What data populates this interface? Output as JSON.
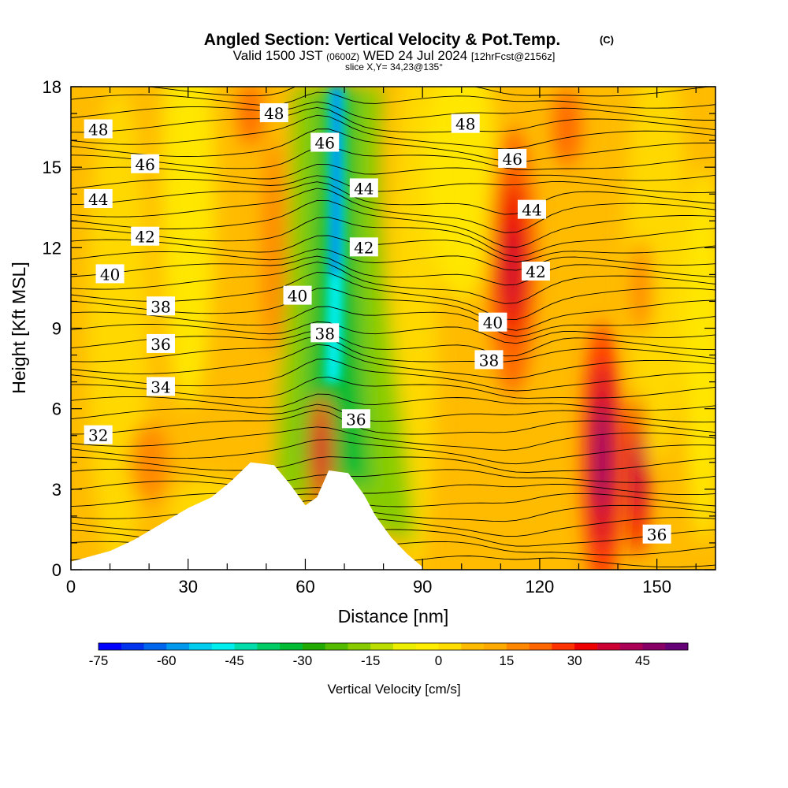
{
  "header": {
    "title": "Angled Section: Vertical Velocity & Pot.Temp.",
    "copyright": "(C)",
    "valid_prefix": "Valid 1500 JST",
    "valid_z": "(0600Z)",
    "valid_date": "WED 24 Jul 2024",
    "fcst": "[12hrFcst@2156z]",
    "slice": "slice X,Y= 34,23@135°"
  },
  "colorbar": {
    "label": "Vertical Velocity [cm/s]",
    "tick_labels": [
      "-75",
      "-60",
      "-45",
      "-30",
      "-15",
      "0",
      "15",
      "30",
      "45"
    ],
    "colors": [
      "#0000ff",
      "#0033ee",
      "#0066ee",
      "#0099ee",
      "#00ccee",
      "#00eeee",
      "#00ddaa",
      "#00cc66",
      "#00bb33",
      "#22aa00",
      "#55bb00",
      "#88cc00",
      "#bbdd00",
      "#eeee00",
      "#ffee00",
      "#ffdd00",
      "#ffbb00",
      "#ffaa00",
      "#ff8800",
      "#ff6600",
      "#ff3300",
      "#ee0000",
      "#cc0033",
      "#aa0055",
      "#880066",
      "#660077"
    ]
  },
  "chart_data": {
    "type": "heatmap",
    "xlabel": "Distance [nm]",
    "ylabel": "Height [Kft MSL]",
    "xlim": [
      0,
      165
    ],
    "ylim": [
      0,
      18
    ],
    "xticks": [
      0,
      30,
      60,
      90,
      120,
      150
    ],
    "yticks": [
      0,
      3,
      6,
      9,
      12,
      15,
      18
    ],
    "field": "Vertical Velocity [cm/s]",
    "field_features": [
      {
        "kind": "downdraft",
        "x": 68,
        "y": 13.5,
        "w": -70
      },
      {
        "kind": "updraft",
        "x": 64,
        "y": 4.3,
        "w": 35
      },
      {
        "kind": "updraft",
        "x": 113,
        "y": 11.5,
        "w": 32
      },
      {
        "kind": "updraft",
        "x": 136,
        "y": 4.2,
        "w": 50
      },
      {
        "kind": "updraft",
        "x": 145,
        "y": 3.5,
        "w": 28
      },
      {
        "kind": "updraft",
        "x": 127,
        "y": 16.5,
        "w": 25
      },
      {
        "kind": "updraft",
        "x": 46,
        "y": 17,
        "w": 25
      }
    ],
    "isentropes": [
      {
        "name": "32",
        "label_x": 7,
        "label_y": 5.0
      },
      {
        "name": "34",
        "label_x": 23,
        "label_y": 6.8
      },
      {
        "name": "36",
        "label_x": 23,
        "label_y": 8.4
      },
      {
        "name": "38",
        "label_x": 23,
        "label_y": 9.8
      },
      {
        "name": "40",
        "label_x": 10,
        "label_y": 11.0
      },
      {
        "name": "42",
        "label_x": 19,
        "label_y": 12.4
      },
      {
        "name": "44",
        "label_x": 7,
        "label_y": 13.8
      },
      {
        "name": "46",
        "label_x": 19,
        "label_y": 15.1
      },
      {
        "name": "48",
        "label_x": 7,
        "label_y": 16.4
      },
      {
        "name": "48",
        "label_x": 52,
        "label_y": 17.0
      },
      {
        "name": "46",
        "label_x": 65,
        "label_y": 15.9
      },
      {
        "name": "44",
        "label_x": 75,
        "label_y": 14.2
      },
      {
        "name": "42",
        "label_x": 75,
        "label_y": 12.0
      },
      {
        "name": "40",
        "label_x": 58,
        "label_y": 10.2
      },
      {
        "name": "38",
        "label_x": 65,
        "label_y": 8.8
      },
      {
        "name": "36",
        "label_x": 73,
        "label_y": 5.6
      },
      {
        "name": "48",
        "label_x": 101,
        "label_y": 16.6
      },
      {
        "name": "46",
        "label_x": 113,
        "label_y": 15.3
      },
      {
        "name": "44",
        "label_x": 118,
        "label_y": 13.4
      },
      {
        "name": "42",
        "label_x": 119,
        "label_y": 11.1
      },
      {
        "name": "40",
        "label_x": 108,
        "label_y": 9.2
      },
      {
        "name": "38",
        "label_x": 107,
        "label_y": 7.8
      },
      {
        "name": "36",
        "label_x": 150,
        "label_y": 1.3
      }
    ],
    "terrain": [
      [
        0,
        0.3
      ],
      [
        10,
        0.7
      ],
      [
        16,
        1.1
      ],
      [
        23,
        1.7
      ],
      [
        30,
        2.3
      ],
      [
        36,
        2.7
      ],
      [
        41,
        3.3
      ],
      [
        46,
        4.0
      ],
      [
        52,
        3.9
      ],
      [
        56,
        3.2
      ],
      [
        60,
        2.4
      ],
      [
        63,
        2.7
      ],
      [
        66,
        3.7
      ],
      [
        71,
        3.6
      ],
      [
        75,
        2.8
      ],
      [
        78,
        2.0
      ],
      [
        82,
        1.2
      ],
      [
        86,
        0.6
      ],
      [
        90,
        0.1
      ]
    ]
  }
}
